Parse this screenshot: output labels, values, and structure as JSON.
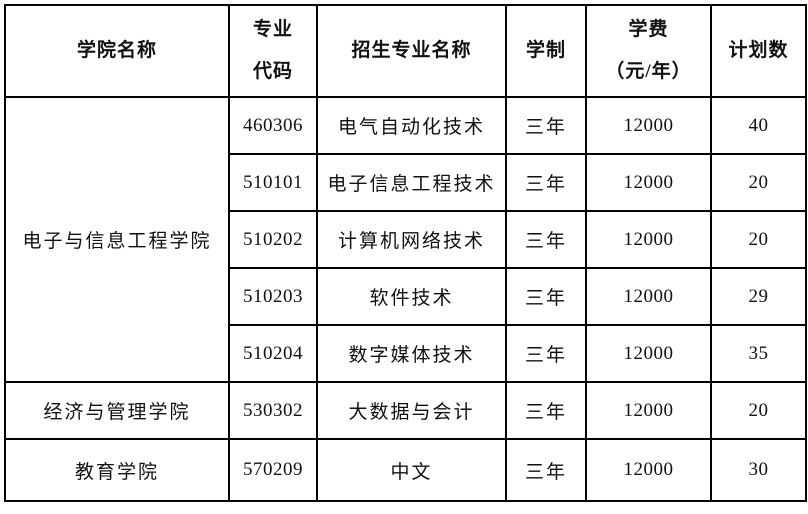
{
  "table": {
    "headers": {
      "college": "学院名称",
      "code": "专业\n代码",
      "major": "招生专业名称",
      "duration": "学制",
      "tuition": "学费\n（元/年）",
      "plan": "计划数"
    },
    "colleges": [
      {
        "name": "电子与信息工程学院",
        "majors": [
          {
            "code": "460306",
            "major": "电气自动化技术",
            "duration": "三年",
            "tuition": "12000",
            "plan": "40"
          },
          {
            "code": "510101",
            "major": "电子信息工程技术",
            "duration": "三年",
            "tuition": "12000",
            "plan": "20"
          },
          {
            "code": "510202",
            "major": "计算机网络技术",
            "duration": "三年",
            "tuition": "12000",
            "plan": "20"
          },
          {
            "code": "510203",
            "major": "软件技术",
            "duration": "三年",
            "tuition": "12000",
            "plan": "29"
          },
          {
            "code": "510204",
            "major": "数字媒体技术",
            "duration": "三年",
            "tuition": "12000",
            "plan": "35"
          }
        ]
      },
      {
        "name": "经济与管理学院",
        "majors": [
          {
            "code": "530302",
            "major": "大数据与会计",
            "duration": "三年",
            "tuition": "12000",
            "plan": "20"
          }
        ]
      },
      {
        "name": "教育学院",
        "majors": [
          {
            "code": "570209",
            "major": "中文",
            "duration": "三年",
            "tuition": "12000",
            "plan": "30"
          }
        ]
      }
    ],
    "colors": {
      "border": "#000000",
      "text": "#111111",
      "background": "#ffffff"
    }
  }
}
